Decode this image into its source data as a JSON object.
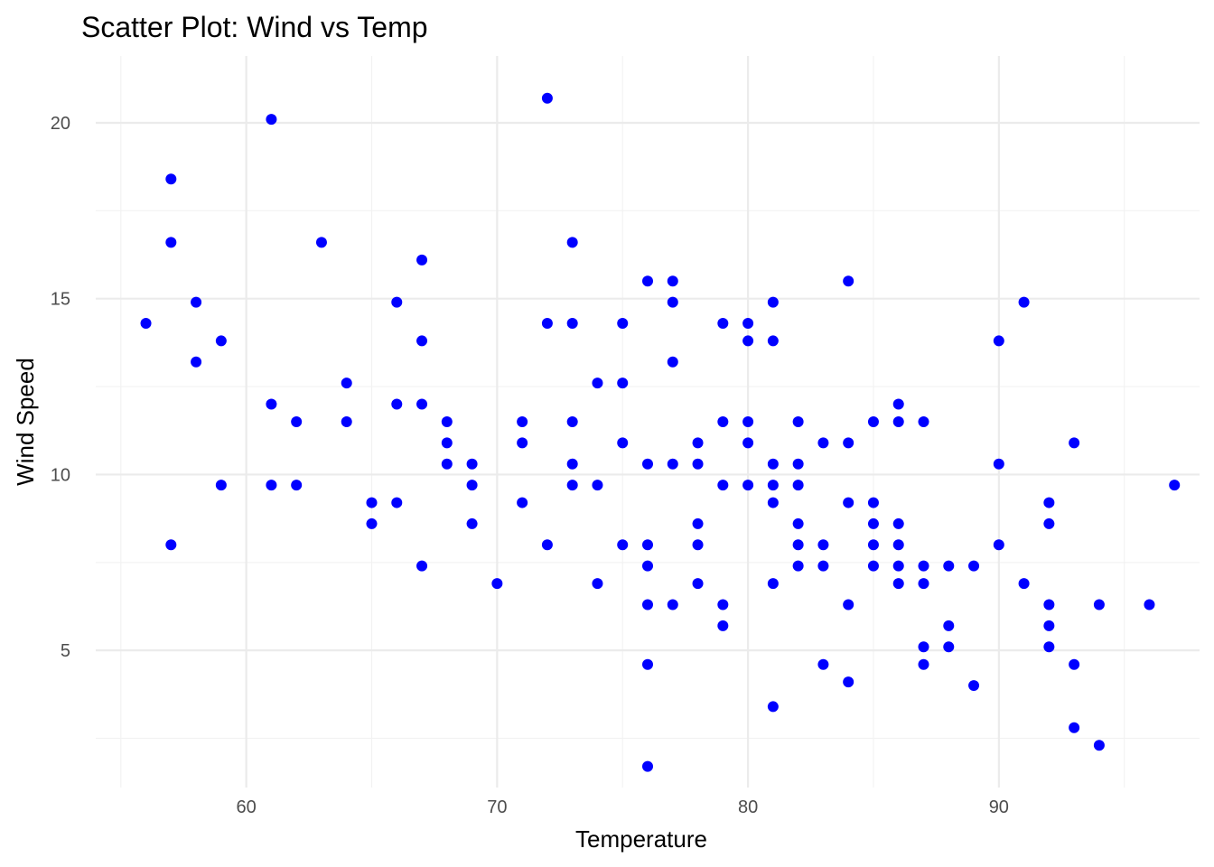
{
  "chart_data": {
    "type": "scatter",
    "title": "Scatter Plot: Wind vs Temp",
    "xlabel": "Temperature",
    "ylabel": "Wind Speed",
    "xlim": [
      54,
      98
    ],
    "ylim": [
      1.1,
      21.9
    ],
    "x_ticks": [
      60,
      70,
      80,
      90
    ],
    "x_tick_labels": [
      "60",
      "70",
      "80",
      "90"
    ],
    "y_ticks": [
      5,
      10,
      15,
      20
    ],
    "y_tick_labels": [
      "5",
      "10",
      "15",
      "20"
    ],
    "grid": true,
    "legend": "none",
    "point_color": "#0000ff",
    "x": [
      56,
      57,
      57,
      57,
      58,
      58,
      59,
      59,
      61,
      61,
      61,
      62,
      62,
      63,
      64,
      64,
      65,
      65,
      66,
      66,
      66,
      67,
      67,
      67,
      67,
      68,
      68,
      68,
      69,
      69,
      69,
      70,
      71,
      71,
      71,
      72,
      72,
      72,
      73,
      73,
      73,
      73,
      73,
      74,
      74,
      74,
      75,
      75,
      75,
      75,
      76,
      76,
      76,
      76,
      76,
      76,
      76,
      77,
      77,
      77,
      77,
      77,
      78,
      78,
      78,
      78,
      78,
      79,
      79,
      79,
      79,
      79,
      80,
      80,
      80,
      80,
      80,
      81,
      81,
      81,
      81,
      81,
      81,
      81,
      82,
      82,
      82,
      82,
      82,
      82,
      83,
      83,
      83,
      83,
      84,
      84,
      84,
      84,
      84,
      85,
      85,
      85,
      85,
      85,
      86,
      86,
      86,
      86,
      86,
      86,
      87,
      87,
      87,
      87,
      87,
      88,
      88,
      88,
      89,
      89,
      90,
      90,
      90,
      91,
      91,
      92,
      92,
      92,
      92,
      92,
      93,
      93,
      93,
      94,
      94,
      96,
      97
    ],
    "y": [
      14.3,
      18.4,
      16.6,
      8.0,
      14.9,
      13.2,
      13.8,
      9.7,
      20.1,
      12.0,
      9.7,
      11.5,
      9.7,
      16.6,
      12.6,
      11.5,
      9.2,
      8.6,
      14.9,
      12.0,
      9.2,
      16.1,
      13.8,
      12.0,
      7.4,
      11.5,
      10.9,
      10.3,
      10.3,
      9.7,
      8.6,
      6.9,
      11.5,
      10.9,
      9.2,
      20.7,
      14.3,
      8.0,
      16.6,
      14.3,
      11.5,
      10.3,
      9.7,
      12.6,
      9.7,
      6.9,
      14.3,
      12.6,
      10.9,
      8.0,
      15.5,
      10.3,
      8.0,
      7.4,
      6.3,
      4.6,
      1.7,
      15.5,
      14.9,
      13.2,
      10.3,
      6.3,
      10.9,
      10.3,
      8.6,
      8.0,
      6.9,
      14.3,
      11.5,
      9.7,
      6.3,
      5.7,
      14.3,
      13.8,
      11.5,
      10.9,
      9.7,
      14.9,
      13.8,
      10.3,
      9.7,
      9.2,
      6.9,
      3.4,
      11.5,
      10.3,
      9.7,
      8.6,
      8.0,
      7.4,
      10.9,
      8.0,
      7.4,
      4.6,
      15.5,
      10.9,
      9.2,
      6.3,
      4.1,
      11.5,
      9.2,
      8.6,
      8.0,
      7.4,
      12.0,
      11.5,
      8.6,
      8.0,
      7.4,
      6.9,
      11.5,
      7.4,
      6.9,
      5.1,
      4.6,
      7.4,
      5.7,
      5.1,
      7.4,
      4.0,
      13.8,
      10.3,
      8.0,
      14.9,
      6.9,
      9.2,
      8.6,
      6.3,
      5.7,
      5.1,
      10.9,
      4.6,
      2.8,
      6.3,
      2.3,
      6.3,
      9.7
    ]
  }
}
